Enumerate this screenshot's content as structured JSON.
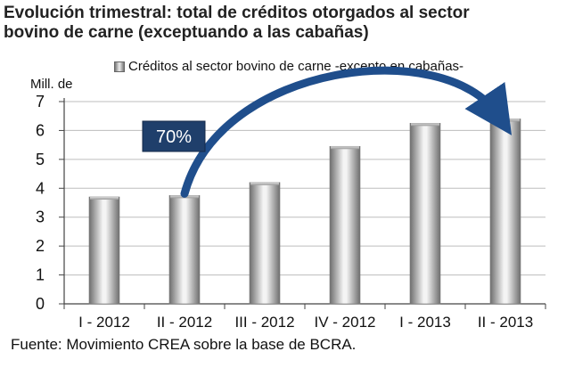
{
  "title": {
    "line1": "Evolución trimestral: total de créditos otorgados al sector",
    "line2": "bovino de carne (exceptuando a las cabañas)"
  },
  "source": "Fuente: Movimiento CREA sobre la base de BCRA.",
  "colors": {
    "bar_dark": "#6e6e6e",
    "bar_light": "#f2f2f2",
    "arrow": "#1f4e8c",
    "badge": "#1f3f6b"
  },
  "chart_data": {
    "type": "bar",
    "title": "Evolución trimestral: total de créditos otorgados al sector bovino de carne (exceptuando a las cabañas)",
    "ylabel": "Mill. de",
    "xlabel": "",
    "ylim": [
      0,
      7
    ],
    "yticks": [
      0,
      1,
      2,
      3,
      4,
      5,
      6,
      7
    ],
    "grid": true,
    "legend": {
      "position": "top",
      "entries": [
        "Créditos al sector bovino de carne -excepto en cabañas-"
      ]
    },
    "categories": [
      "I - 2012",
      "II - 2012",
      "III - 2012",
      "IV - 2012",
      "I - 2013",
      "II - 2013"
    ],
    "series": [
      {
        "name": "Créditos al sector bovino de carne -excepto en cabañas-",
        "values": [
          3.7,
          3.75,
          4.2,
          5.45,
          6.25,
          6.4
        ]
      }
    ],
    "annotation": {
      "label": "70%",
      "from_category": "II - 2012",
      "to_category": "II - 2013"
    }
  }
}
